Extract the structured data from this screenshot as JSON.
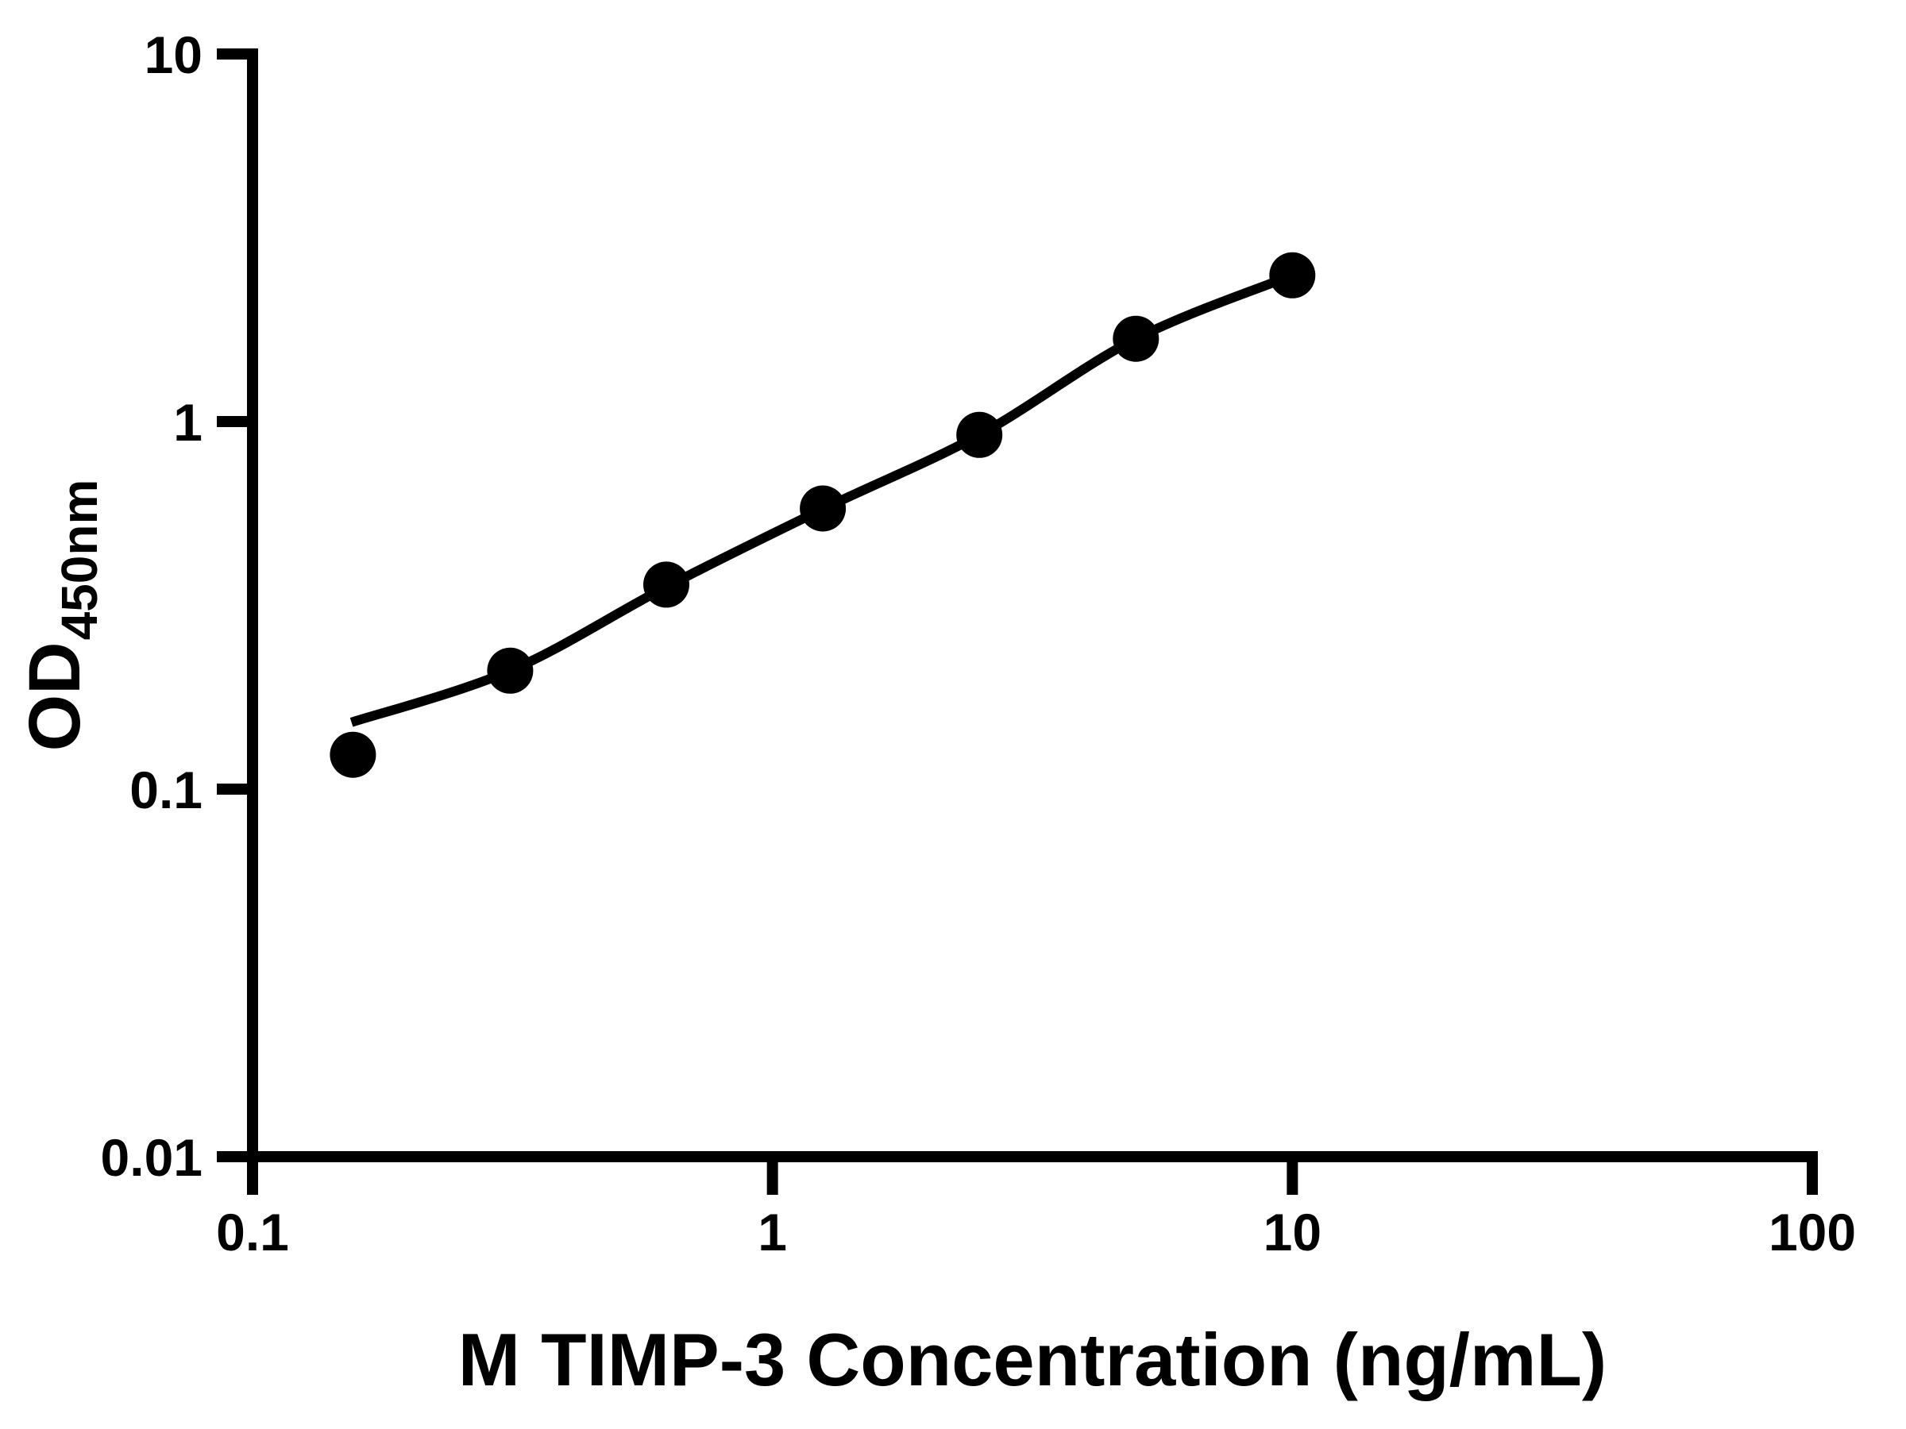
{
  "colors": {
    "background": "#ffffff",
    "axis": "#000000",
    "marker": "#000000",
    "curve": "#000000",
    "text": "#000000"
  },
  "chart_data": {
    "type": "scatter",
    "title": "",
    "xlabel": "M TIMP-3 Concentration (ng/mL)",
    "ylabel": "OD450nm",
    "ylabel_main": "OD",
    "ylabel_sub": "450nm",
    "x_scale": "log",
    "y_scale": "log",
    "xlim": [
      0.1,
      100
    ],
    "ylim": [
      0.01,
      10
    ],
    "grid": false,
    "legend": null,
    "x_ticks": [
      {
        "v": 0.1,
        "label": "0.1"
      },
      {
        "v": 1,
        "label": "1"
      },
      {
        "v": 10,
        "label": "10"
      },
      {
        "v": 100,
        "label": "100"
      }
    ],
    "y_ticks": [
      {
        "v": 0.01,
        "label": "0.01"
      },
      {
        "v": 0.1,
        "label": "0.1"
      },
      {
        "v": 1,
        "label": "1"
      },
      {
        "v": 10,
        "label": "10"
      }
    ],
    "series": [
      {
        "name": "standard-points",
        "type": "scatter",
        "marker": "circle",
        "color": "#000000",
        "points": [
          {
            "x": 0.156,
            "y": 0.124
          },
          {
            "x": 0.313,
            "y": 0.21
          },
          {
            "x": 0.625,
            "y": 0.36
          },
          {
            "x": 1.25,
            "y": 0.58
          },
          {
            "x": 2.5,
            "y": 0.92
          },
          {
            "x": 5,
            "y": 1.68
          },
          {
            "x": 10,
            "y": 2.5
          }
        ]
      },
      {
        "name": "fitted-curve",
        "type": "line",
        "color": "#000000",
        "points": [
          {
            "x": 0.155,
            "y": 0.152
          },
          {
            "x": 0.313,
            "y": 0.21
          },
          {
            "x": 0.625,
            "y": 0.355
          },
          {
            "x": 1.25,
            "y": 0.578
          },
          {
            "x": 2.5,
            "y": 0.92
          },
          {
            "x": 5,
            "y": 1.68
          },
          {
            "x": 10,
            "y": 2.5
          }
        ]
      }
    ]
  }
}
